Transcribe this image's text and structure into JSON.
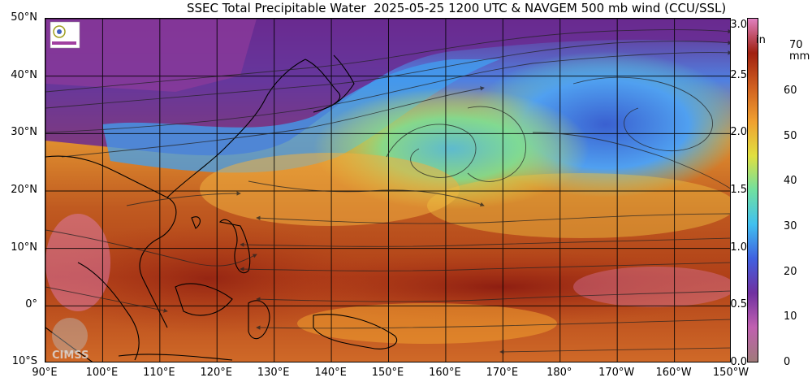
{
  "title": "SSEC Total Precipitable Water  2025-05-25 1200 UTC & NAVGEM 500 mb wind (CCU/SSL)",
  "watermark": "CIMSS",
  "lat_labels": [
    {
      "label": "50°N",
      "value": 50
    },
    {
      "label": "40°N",
      "value": 40
    },
    {
      "label": "30°N",
      "value": 30
    },
    {
      "label": "20°N",
      "value": 20
    },
    {
      "label": "10°N",
      "value": 10
    },
    {
      "label": "0°",
      "value": 0
    },
    {
      "label": "10°S",
      "value": -10
    }
  ],
  "lon_labels": [
    {
      "label": "90°E",
      "value": 90
    },
    {
      "label": "100°E",
      "value": 100
    },
    {
      "label": "110°E",
      "value": 110
    },
    {
      "label": "120°E",
      "value": 120
    },
    {
      "label": "130°E",
      "value": 130
    },
    {
      "label": "140°E",
      "value": 140
    },
    {
      "label": "150°E",
      "value": 150
    },
    {
      "label": "160°E",
      "value": 160
    },
    {
      "label": "170°E",
      "value": 170
    },
    {
      "label": "180°",
      "value": 180
    },
    {
      "label": "170°W",
      "value": 190
    },
    {
      "label": "160°W",
      "value": 200
    },
    {
      "label": "150°W",
      "value": 210
    }
  ],
  "lat_range": [
    -10,
    50
  ],
  "lon_range": [
    90,
    210
  ],
  "colorbar": {
    "unit_in": "in",
    "unit_mm": "mm",
    "in_ticks": [
      "3.0",
      "2.5",
      "2.0",
      "1.5",
      "1.0",
      "0.5",
      "0.0"
    ],
    "in_values": [
      3.0,
      2.5,
      2.0,
      1.5,
      1.0,
      0.5,
      0.0
    ],
    "mm_ticks": [
      "70",
      "60",
      "50",
      "40",
      "30",
      "20",
      "10",
      "0"
    ],
    "mm_values": [
      70,
      60,
      50,
      40,
      30,
      20,
      10,
      0
    ],
    "max_mm": 76.2,
    "colors": [
      "#a07a7a",
      "#c060b0",
      "#7030a0",
      "#4060e0",
      "#40c0f0",
      "#70e0a0",
      "#e0e040",
      "#f0a030",
      "#d06020",
      "#a02010",
      "#e080c0"
    ]
  }
}
